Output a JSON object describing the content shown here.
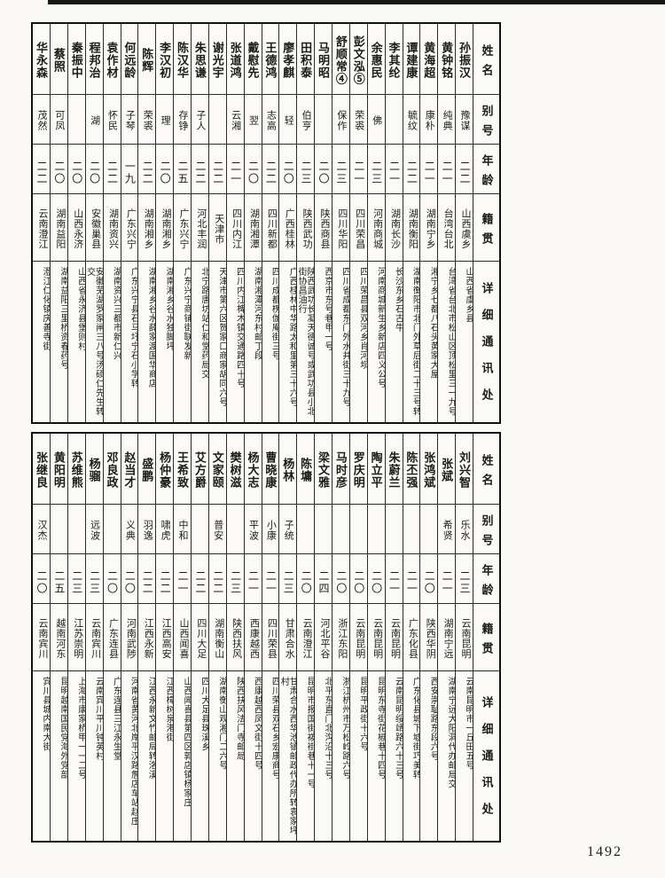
{
  "page_number": "1492",
  "headers": {
    "name": "姓名",
    "alias": "别号",
    "age": "年龄",
    "origin": "籍贯",
    "address": "详细通讯处"
  },
  "top": {
    "entries": [
      {
        "name": "孙振汉",
        "alias": "豫谋",
        "age": "二二",
        "origin": "山西虞乡",
        "address": "山西省虞乡县"
      },
      {
        "name": "黄钟铭",
        "alias": "纯典",
        "age": "二一",
        "origin": "台湾台北",
        "address": "台湾省台北市松山区顶松里三一九号"
      },
      {
        "name": "黄海超",
        "alias": "康朴",
        "age": "二一",
        "origin": "湖南宁乡",
        "address": "湘宁乡七都八石头黄家大屋"
      },
      {
        "name": "谭建康",
        "alias": "毓纹",
        "age": "二二",
        "origin": "湖南衡阳",
        "address": "湖南衡阳市北门外草后街二十三号转"
      },
      {
        "name": "李其纶",
        "alias": "",
        "age": "二一",
        "origin": "湖南长沙",
        "address": "长沙东乡石古牛"
      },
      {
        "name": "余惠民",
        "alias": "佛",
        "age": "二三",
        "origin": "河南商城",
        "address": "河南商城新生乡新店四义公号"
      },
      {
        "name": "彭文泓⑤",
        "alias": "荣裘",
        "age": "二一",
        "origin": "四川荣昌",
        "address": "四川荣昌县双河乡肖河坝"
      },
      {
        "name": "舒顺常④",
        "alias": "保作",
        "age": "二三",
        "origin": "四川华阳",
        "address": "四川省成都东门外水井街三十九号"
      },
      {
        "name": "马明昭",
        "alias": "",
        "age": "二〇",
        "origin": "陕西商县",
        "address": "西京市东号巷甲一号"
      },
      {
        "name": "田积泰",
        "alias": "伯亨",
        "age": "二三",
        "origin": "陕西武功",
        "address": "陕西武功长凝天德诚号或武功县小北街协昌油行"
      },
      {
        "name": "廖孝麒",
        "alias": "轻",
        "age": "二〇",
        "origin": "广西桂林",
        "address": "广西桂林中华路太和里第三十六号"
      },
      {
        "name": "王德鸿",
        "alias": "志高",
        "age": "二二",
        "origin": "四川新都",
        "address": "四川成都楞伽庵街三号"
      },
      {
        "name": "戴慰先",
        "alias": "翌",
        "age": "二〇",
        "origin": "湖南湘潭",
        "address": "湖南湘潭河东村邮丁段"
      },
      {
        "name": "张道鸿",
        "alias": "云湘",
        "age": "二一",
        "origin": "四川内江",
        "address": "四川内江椑木镇交通路四十号"
      },
      {
        "name": "谢光宇",
        "alias": "",
        "age": "二二",
        "origin": "天津市",
        "address": "天津市第六区贺家口商家胡同六号"
      },
      {
        "name": "朱思谦",
        "alias": "子人",
        "age": "二二",
        "origin": "河北丰润",
        "address": "北宁路唐坊站仁和堂药局交"
      },
      {
        "name": "陈汉华",
        "alias": "存铮",
        "age": "二五",
        "origin": "广东兴宁",
        "address": "广东兴宁商铺街联发新"
      },
      {
        "name": "李汉初",
        "alias": "理",
        "age": "二〇",
        "origin": "湖南湘乡",
        "address": "湖南湘乡谷水独脚坪"
      },
      {
        "name": "陈辉",
        "alias": "荣裘",
        "age": "二二",
        "origin": "湖南湘乡",
        "address": "湖南湘乡谷水薛家渡国华商店"
      },
      {
        "name": "何远龄",
        "alias": "子琴",
        "age": "一九",
        "origin": "广东兴宁",
        "address": "广东兴宁县石马圩宁石小学转"
      },
      {
        "name": "袁作材",
        "alias": "怀民",
        "age": "二二",
        "origin": "湖南资兴",
        "address": "湖南资兴三都市新仁兴"
      },
      {
        "name": "程邦治",
        "alias": "湖",
        "age": "二〇",
        "origin": "安徽巢县",
        "address": "安徽芜湖罗家闸三八号汤硕仁先生转交"
      },
      {
        "name": "秦振中",
        "alias": "",
        "age": "二〇",
        "origin": "山西永济",
        "address": "山西省永济县堡则村"
      },
      {
        "name": "蔡照",
        "alias": "可凤",
        "age": "二〇",
        "origin": "湖南益阳",
        "address": "湖南益阳三里桥资春药号"
      },
      {
        "name": "华永森",
        "alias": "茂然",
        "age": "二二",
        "origin": "云南澄江",
        "address": "澄江仁化镇庆善寺街"
      }
    ]
  },
  "bottom": {
    "entries": [
      {
        "name": "刘兴智",
        "alias": "乐水",
        "age": "二三",
        "origin": "云南昆明",
        "address": "云南昆明市一丘田五号"
      },
      {
        "name": "张斌",
        "alias": "希贤",
        "age": "二一",
        "origin": "湖南宁远",
        "address": "湖南宁远大阳洞代办邮局交"
      },
      {
        "name": "张鸿斌",
        "alias": "",
        "age": "二〇",
        "origin": "陕西华阴",
        "address": "西安崇耻路东段六号"
      },
      {
        "name": "陈丕强",
        "alias": "",
        "age": "二一",
        "origin": "广东化县",
        "address": "广东化县城下墟街巧美转"
      },
      {
        "name": "朱蔚兰",
        "alias": "",
        "age": "二一",
        "origin": "云南昆明",
        "address": "云南昆明绥靖路六十三号"
      },
      {
        "name": "陶立平",
        "alias": "",
        "age": "二〇",
        "origin": "云南昆明",
        "address": "昆明东寺街花椒巷十四号"
      },
      {
        "name": "罗庆明",
        "alias": "",
        "age": "二〇",
        "origin": "云南昆明",
        "address": "昆明平政街十六号"
      },
      {
        "name": "马时彦",
        "alias": "",
        "age": "二〇",
        "origin": "浙江东阳",
        "address": "浙江杭州市万松岭路六号"
      },
      {
        "name": "梁文雅",
        "alias": "",
        "age": "二四",
        "origin": "河北平谷",
        "address": "北平东直门北沟沿十三号"
      },
      {
        "name": "陈墉",
        "alias": "",
        "age": "二〇",
        "origin": "云南澄江",
        "address": "昆明市报国街袯褂巷十一号"
      },
      {
        "name": "杨林",
        "alias": "子统",
        "age": "二三",
        "origin": "甘肃合水",
        "address": "甘肃合水西华池镇邮政代办所转袁家坪村"
      },
      {
        "name": "曹晓康",
        "alias": "小康",
        "age": "二一",
        "origin": "四川荣县",
        "address": "四川荣县双石乡宏康商号"
      },
      {
        "name": "杨大志",
        "alias": "平波",
        "age": "二一",
        "origin": "西康越西",
        "address": "西康越西凤文街十四号"
      },
      {
        "name": "樊树滋",
        "alias": "",
        "age": "二三",
        "origin": "陕西扶风",
        "address": "陕西扶风法门寺邮局"
      },
      {
        "name": "文家颐",
        "alias": "普安",
        "age": "二二",
        "origin": "湖南衡山",
        "address": "湖南衡山观湘门二六号"
      },
      {
        "name": "艾方爵",
        "alias": "",
        "age": "二二",
        "origin": "四川大足",
        "address": "四川大足县珠溪乡"
      },
      {
        "name": "王希致",
        "alias": "中和",
        "age": "二一",
        "origin": "山西闻喜",
        "address": "山西闻喜县第四区郭店镇杨家庄"
      },
      {
        "name": "杨仲豪",
        "alias": "啸虎",
        "age": "二二",
        "origin": "江西高安",
        "address": "江西樟树泉港街"
      },
      {
        "name": "盛鹏",
        "alias": "羽逸",
        "age": "二二",
        "origin": "江西永新",
        "address": "江西永新文竹邮局转洛溪"
      },
      {
        "name": "赵当才",
        "alias": "义典",
        "age": "二〇",
        "origin": "河南武陟",
        "address": "河南省黄河北岸平汉路詹店车站赵庄"
      },
      {
        "name": "邓良政",
        "alias": "",
        "age": "二〇",
        "origin": "广东连县",
        "address": "广东连县三江永生堂"
      },
      {
        "name": "杨骝",
        "alias": "远波",
        "age": "二三",
        "origin": "云南宾川",
        "address": "云南宾川平川钟英村"
      },
      {
        "name": "苏维熊",
        "alias": "",
        "age": "二三",
        "origin": "江苏崇明",
        "address": "上海市康家桥甲一一二号"
      },
      {
        "name": "黄阳明",
        "alias": "",
        "age": "二五",
        "origin": "越南河东",
        "address": "昆明越南国民党海外党部"
      },
      {
        "name": "张继良",
        "alias": "汉杰",
        "age": "二〇",
        "origin": "云南宾川",
        "address": "宾川县城内南大街"
      }
    ]
  }
}
